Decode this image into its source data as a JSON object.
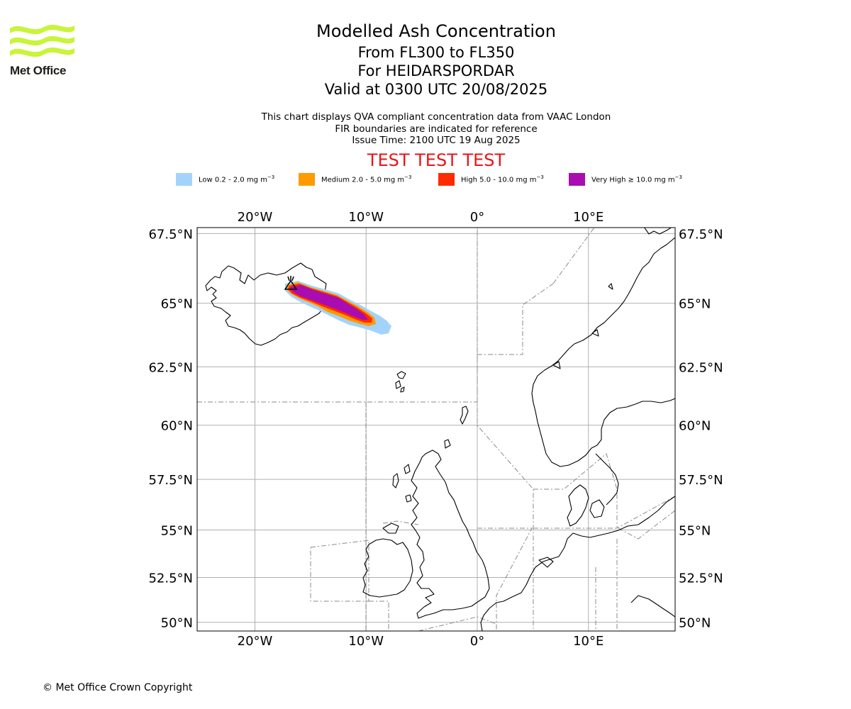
{
  "logo": {
    "text": "Met Office",
    "color": "#c8f43a"
  },
  "title": {
    "line1": "Modelled Ash Concentration",
    "line2": "From FL300 to FL350",
    "line3": "For HEIDARSPORDAR",
    "line4": "Valid at 0300 UTC 20/08/2025"
  },
  "subtitle": {
    "line1": "This chart displays QVA compliant concentration data from VAAC London",
    "line2": "FIR boundaries are indicated for reference",
    "line3": "Issue Time: 2100 UTC 19 Aug 2025"
  },
  "test_banner": "TEST TEST TEST",
  "legend": [
    {
      "label": "Low 0.2 - 2.0 mg m",
      "exp": "−3",
      "color": "#a3d3fa"
    },
    {
      "label": "Medium 2.0 - 5.0 mg m",
      "exp": "−3",
      "color": "#ff9a00"
    },
    {
      "label": "High 5.0 - 10.0 mg m",
      "exp": "−3",
      "color": "#ff2a00"
    },
    {
      "label": "Very High  ≥  10.0 mg m",
      "exp": "−3",
      "color": "#a90cb0"
    }
  ],
  "map": {
    "lon_ticks": [
      {
        "value": -20,
        "label": "20°W"
      },
      {
        "value": -10,
        "label": "10°W"
      },
      {
        "value": 0,
        "label": "0°"
      },
      {
        "value": 10,
        "label": "10°E"
      }
    ],
    "lat_ticks": [
      {
        "value": 67.5,
        "label": "67.5°N"
      },
      {
        "value": 65,
        "label": "65°N"
      },
      {
        "value": 62.5,
        "label": "62.5°N"
      },
      {
        "value": 60,
        "label": "60°N"
      },
      {
        "value": 57.5,
        "label": "57.5°N"
      },
      {
        "value": 55,
        "label": "55°N"
      },
      {
        "value": 52.5,
        "label": "52.5°N"
      },
      {
        "value": 50,
        "label": "50°N"
      }
    ],
    "extent": {
      "lon_min": -25.2,
      "lon_max": 17.8,
      "lat_min": 49.5,
      "lat_max": 67.7
    },
    "volcano": {
      "lon": -16.5,
      "lat": 65.6
    },
    "plume_levels": [
      "low",
      "medium",
      "high",
      "very_high"
    ]
  },
  "copyright": "© Met Office Crown Copyright"
}
